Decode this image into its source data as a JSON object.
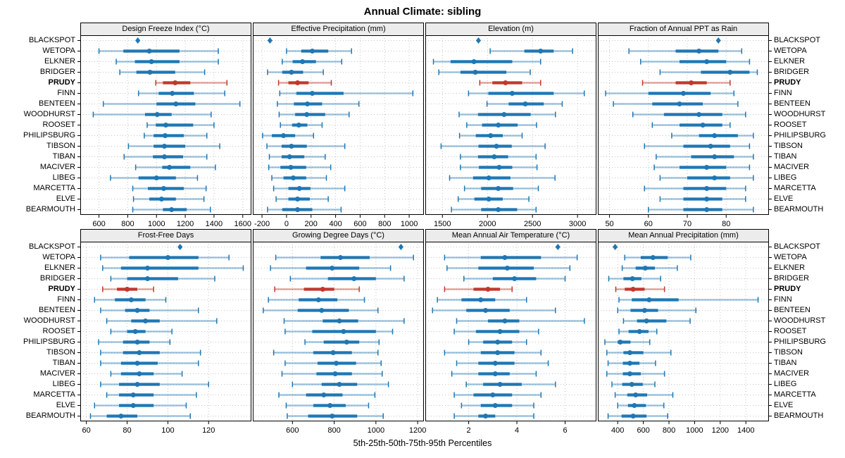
{
  "title": "Annual Climate: sibling",
  "caption": "5th-25th-50th-75th-95th Percentiles",
  "colors": {
    "blue": "#1f77b4",
    "blue_light": "rgba(31,119,180,0.42)",
    "red": "#c0392b",
    "red_light": "rgba(192,57,43,0.45)",
    "strip_bg": "#ececec",
    "grid": "#c4c4c4",
    "border": "#000000"
  },
  "sites": [
    "BLACKSPOT",
    "WETOPA",
    "ELKNER",
    "BRIDGER",
    "PRUDY",
    "FINN",
    "BENTEEN",
    "WOODHURST",
    "ROOSET",
    "PHILIPSBURG",
    "TIBSON",
    "TIBAN",
    "MACIVER",
    "LIBEG",
    "MARCETTA",
    "ELVE",
    "BEARMOUTH"
  ],
  "highlight_site": "PRUDY",
  "point_only_site": "BLACKSPOT",
  "percentile_order": [
    "p5",
    "p25",
    "p50",
    "p75",
    "p95"
  ],
  "chart_data": [
    {
      "type": "percentile-dotplot",
      "title": "Design Freeze Index (°C)",
      "ticks": [
        600,
        800,
        1000,
        1200,
        1400,
        1600
      ],
      "domain": [
        470,
        1660
      ],
      "point_value": 870,
      "series": {
        "WETOPA": [
          600,
          770,
          950,
          1160,
          1430
        ],
        "ELKNER": [
          720,
          850,
          965,
          1160,
          1430
        ],
        "BRIDGER": [
          745,
          860,
          955,
          1130,
          1335
        ],
        "PRUDY": [
          995,
          1045,
          1130,
          1235,
          1490
        ],
        "FINN": [
          875,
          1015,
          1110,
          1260,
          1475
        ],
        "BENTEEN": [
          630,
          1000,
          1135,
          1270,
          1580
        ],
        "WOODHURST": [
          560,
          920,
          1005,
          1105,
          1380
        ],
        "ROOSET": [
          935,
          995,
          1065,
          1255,
          1400
        ],
        "PHILIPSBURG": [
          915,
          980,
          1060,
          1190,
          1350
        ],
        "TIBSON": [
          805,
          980,
          1055,
          1200,
          1440
        ],
        "TIBAN": [
          775,
          975,
          1055,
          1185,
          1350
        ],
        "MACIVER": [
          855,
          1040,
          1090,
          1235,
          1410
        ],
        "LIBEG": [
          680,
          875,
          1000,
          1135,
          1285
        ],
        "MARCETTA": [
          835,
          940,
          1050,
          1190,
          1345
        ],
        "ELVE": [
          840,
          950,
          1035,
          1135,
          1330
        ],
        "BEARMOUTH": [
          835,
          1045,
          1105,
          1210,
          1375
        ]
      }
    },
    {
      "type": "percentile-dotplot",
      "title": "Effective Precipitation (mm)",
      "ticks": [
        -200,
        0,
        200,
        400,
        600,
        800,
        1000
      ],
      "domain": [
        -275,
        1120
      ],
      "point_value": -135,
      "series": {
        "WETOPA": [
          0,
          120,
          210,
          340,
          530
        ],
        "ELKNER": [
          -35,
          50,
          130,
          240,
          450
        ],
        "BRIDGER": [
          -155,
          -35,
          40,
          135,
          300
        ],
        "PRUDY": [
          -65,
          15,
          90,
          180,
          365
        ],
        "FINN": [
          -55,
          80,
          210,
          465,
          1030
        ],
        "BENTEEN": [
          -75,
          60,
          170,
          290,
          590
        ],
        "WOODHURST": [
          -60,
          70,
          165,
          315,
          510
        ],
        "ROOSET": [
          -50,
          45,
          100,
          170,
          290
        ],
        "PHILIPSBURG": [
          -195,
          -120,
          -25,
          70,
          220
        ],
        "TIBSON": [
          -160,
          -40,
          40,
          165,
          475
        ],
        "TIBAN": [
          -140,
          -40,
          25,
          145,
          315
        ],
        "MACIVER": [
          -145,
          -50,
          35,
          160,
          360
        ],
        "LIBEG": [
          -120,
          -25,
          55,
          160,
          325
        ],
        "MARCETTA": [
          -105,
          15,
          105,
          195,
          475
        ],
        "ELVE": [
          -85,
          15,
          90,
          190,
          340
        ],
        "BEARMOUTH": [
          -155,
          -35,
          90,
          210,
          445
        ]
      }
    },
    {
      "type": "percentile-dotplot",
      "title": "Elevation (m)",
      "ticks": [
        1500,
        2000,
        2500,
        3000
      ],
      "domain": [
        1310,
        3210
      ],
      "point_value": 1900,
      "series": {
        "WETOPA": [
          2030,
          2410,
          2590,
          2735,
          2945
        ],
        "ELKNER": [
          1400,
          1590,
          1850,
          2275,
          2590
        ],
        "BRIDGER": [
          1460,
          1700,
          1865,
          2210,
          2475
        ],
        "PRUDY": [
          1915,
          2055,
          2200,
          2385,
          2590
        ],
        "FINN": [
          1790,
          2010,
          2275,
          2735,
          3075
        ],
        "BENTEEN": [
          1995,
          2235,
          2420,
          2625,
          2830
        ],
        "WOODHURST": [
          1685,
          1895,
          2185,
          2480,
          2755
        ],
        "ROOSET": [
          1770,
          1940,
          2120,
          2335,
          2545
        ],
        "PHILIPSBURG": [
          1690,
          1870,
          2035,
          2170,
          2385
        ],
        "TIBSON": [
          1485,
          1900,
          2100,
          2270,
          2640
        ],
        "TIBAN": [
          1700,
          1895,
          2075,
          2230,
          2540
        ],
        "MACIVER": [
          1700,
          1905,
          2130,
          2275,
          2550
        ],
        "LIBEG": [
          1580,
          1840,
          2015,
          2255,
          2750
        ],
        "MARCETTA": [
          1745,
          1930,
          2120,
          2285,
          2565
        ],
        "ELVE": [
          1675,
          1855,
          2015,
          2170,
          2460
        ],
        "BEARMOUTH": [
          1600,
          1930,
          2120,
          2330,
          2540
        ]
      }
    },
    {
      "type": "percentile-dotplot",
      "title": "Fraction of Annual PPT as Rain",
      "ticks": [
        50,
        60,
        70,
        80
      ],
      "domain": [
        47,
        91
      ],
      "point_value": 78,
      "series": {
        "WETOPA": [
          55,
          67,
          73,
          78,
          84
        ],
        "ELKNER": [
          58,
          68,
          75,
          80,
          86
        ],
        "BRIDGER": [
          63,
          73.5,
          81,
          86,
          88
        ],
        "PRUDY": [
          58.5,
          67,
          71,
          75,
          81
        ],
        "FINN": [
          49,
          60,
          69,
          76,
          82
        ],
        "BENTEEN": [
          51,
          61,
          68,
          74,
          83
        ],
        "WOODHURST": [
          56,
          64,
          73,
          79,
          85
        ],
        "ROOSET": [
          61,
          68,
          74,
          79,
          81
        ],
        "PHILIPSBURG": [
          66,
          73,
          77,
          83,
          87
        ],
        "TIBSON": [
          59,
          69,
          76,
          81,
          86
        ],
        "TIBAN": [
          62,
          71,
          77,
          82,
          87
        ],
        "MACIVER": [
          61.5,
          68,
          75,
          80,
          86
        ],
        "LIBEG": [
          63,
          70,
          77,
          81,
          87
        ],
        "MARCETTA": [
          59,
          69,
          75,
          80,
          85
        ],
        "ELVE": [
          63,
          69,
          75,
          79,
          85
        ],
        "BEARMOUTH": [
          60,
          69,
          75,
          79,
          87
        ]
      }
    },
    {
      "type": "percentile-dotplot",
      "title": "Frost-Free Days",
      "ticks": [
        60,
        80,
        100,
        120
      ],
      "domain": [
        57,
        141
      ],
      "point_value": 106,
      "series": {
        "WETOPA": [
          67,
          81,
          100,
          115,
          130
        ],
        "ELKNER": [
          68,
          77,
          90,
          115,
          137
        ],
        "BRIDGER": [
          72,
          80,
          90,
          105,
          123
        ],
        "PRUDY": [
          68,
          75,
          80,
          85,
          93
        ],
        "FINN": [
          64,
          74,
          82,
          89,
          99
        ],
        "BENTEEN": [
          67,
          79,
          85,
          91,
          115
        ],
        "WOODHURST": [
          70,
          82,
          89,
          96,
          124
        ],
        "ROOSET": [
          72,
          80,
          84,
          89,
          102
        ],
        "PHILIPSBURG": [
          66,
          78,
          85,
          91,
          101
        ],
        "TIBSON": [
          67,
          78,
          86,
          96,
          116
        ],
        "TIBAN": [
          67,
          77,
          85,
          95,
          115
        ],
        "MACIVER": [
          72,
          77,
          86,
          93,
          107
        ],
        "LIBEG": [
          67,
          76,
          85,
          96,
          120
        ],
        "MARCETTA": [
          70,
          76,
          83,
          93,
          114
        ],
        "ELVE": [
          64,
          76,
          83,
          93,
          109
        ],
        "BEARMOUTH": [
          62,
          70,
          77,
          85,
          111
        ]
      }
    },
    {
      "type": "percentile-dotplot",
      "title": "Growing Degree Days (°C)",
      "ticks": [
        600,
        800,
        1000,
        1200
      ],
      "domain": [
        410,
        1230
      ],
      "point_value": 1120,
      "series": {
        "WETOPA": [
          520,
          735,
          830,
          970,
          1180
        ],
        "ELKNER": [
          495,
          665,
          790,
          920,
          1070
        ],
        "BRIDGER": [
          590,
          770,
          895,
          1000,
          1135
        ],
        "PRUDY": [
          515,
          655,
          745,
          800,
          920
        ],
        "FINN": [
          485,
          630,
          725,
          815,
          945
        ],
        "BENTEEN": [
          460,
          625,
          740,
          870,
          1010
        ],
        "WOODHURST": [
          560,
          745,
          825,
          915,
          1135
        ],
        "ROOSET": [
          565,
          695,
          845,
          1000,
          1080
        ],
        "PHILIPSBURG": [
          660,
          750,
          860,
          920,
          1015
        ],
        "TIBSON": [
          510,
          700,
          795,
          885,
          1010
        ],
        "TIBAN": [
          565,
          720,
          810,
          905,
          1025
        ],
        "MACIVER": [
          550,
          715,
          805,
          885,
          1030
        ],
        "LIBEG": [
          600,
          740,
          825,
          910,
          1060
        ],
        "MARCETTA": [
          535,
          665,
          750,
          840,
          995
        ],
        "ELVE": [
          570,
          700,
          780,
          855,
          965
        ],
        "BEARMOUTH": [
          575,
          675,
          790,
          910,
          1035
        ]
      }
    },
    {
      "type": "percentile-dotplot",
      "title": "Mean Annual Air Temperature (°C)",
      "ticks": [
        2,
        4,
        6
      ],
      "domain": [
        0.2,
        7.3
      ],
      "point_value": 5.7,
      "series": {
        "WETOPA": [
          1.0,
          2.5,
          3.5,
          5.0,
          6.5
        ],
        "ELKNER": [
          1.1,
          2.4,
          3.6,
          4.7,
          6.2
        ],
        "BRIDGER": [
          1.8,
          3.0,
          3.9,
          4.8,
          6.0
        ],
        "PRUDY": [
          1.0,
          2.2,
          2.8,
          3.3,
          3.8
        ],
        "FINN": [
          0.7,
          1.7,
          2.5,
          3.1,
          4.4
        ],
        "BENTEEN": [
          0.5,
          1.9,
          2.7,
          3.7,
          5.6
        ],
        "WOODHURST": [
          1.5,
          2.8,
          3.5,
          4.1,
          6.8
        ],
        "ROOSET": [
          1.4,
          2.3,
          3.3,
          4.1,
          4.9
        ],
        "PHILIPSBURG": [
          2.0,
          2.6,
          3.2,
          3.8,
          4.4
        ],
        "TIBSON": [
          1.0,
          2.5,
          3.2,
          3.9,
          5.0
        ],
        "TIBAN": [
          1.5,
          2.4,
          3.1,
          3.9,
          5.3
        ],
        "MACIVER": [
          1.3,
          2.4,
          3.1,
          3.7,
          4.8
        ],
        "LIBEG": [
          1.9,
          2.6,
          3.3,
          4.2,
          5.6
        ],
        "MARCETTA": [
          1.4,
          2.2,
          3.0,
          3.8,
          5.0
        ],
        "ELVE": [
          1.7,
          2.5,
          3.1,
          3.8,
          4.7
        ],
        "BEARMOUTH": [
          1.4,
          2.4,
          2.7,
          3.1,
          4.7
        ]
      }
    },
    {
      "type": "percentile-dotplot",
      "title": "Mean Annual Precipitation (mm)",
      "ticks": [
        400,
        600,
        800,
        1000,
        1200,
        1400
      ],
      "domain": [
        245,
        1580
      ],
      "point_value": 380,
      "series": {
        "WETOPA": [
          455,
          580,
          675,
          790,
          970
        ],
        "ELKNER": [
          435,
          540,
          615,
          690,
          865
        ],
        "BRIDGER": [
          330,
          445,
          515,
          585,
          735
        ],
        "PRUDY": [
          385,
          455,
          520,
          610,
          765
        ],
        "FINN": [
          410,
          510,
          645,
          875,
          1495
        ],
        "BENTEEN": [
          400,
          500,
          610,
          715,
          1010
        ],
        "WOODHURST": [
          445,
          550,
          625,
          780,
          965
        ],
        "ROOSET": [
          410,
          485,
          570,
          640,
          705
        ],
        "PHILIPSBURG": [
          300,
          400,
          420,
          500,
          650
        ],
        "TIBSON": [
          315,
          445,
          495,
          600,
          815
        ],
        "TIBAN": [
          325,
          440,
          495,
          570,
          695
        ],
        "MACIVER": [
          315,
          440,
          495,
          580,
          765
        ],
        "LIBEG": [
          355,
          435,
          510,
          595,
          690
        ],
        "MARCETTA": [
          380,
          475,
          540,
          630,
          830
        ],
        "ELVE": [
          400,
          480,
          530,
          620,
          760
        ],
        "BEARMOUTH": [
          325,
          430,
          520,
          625,
          790
        ]
      }
    }
  ]
}
